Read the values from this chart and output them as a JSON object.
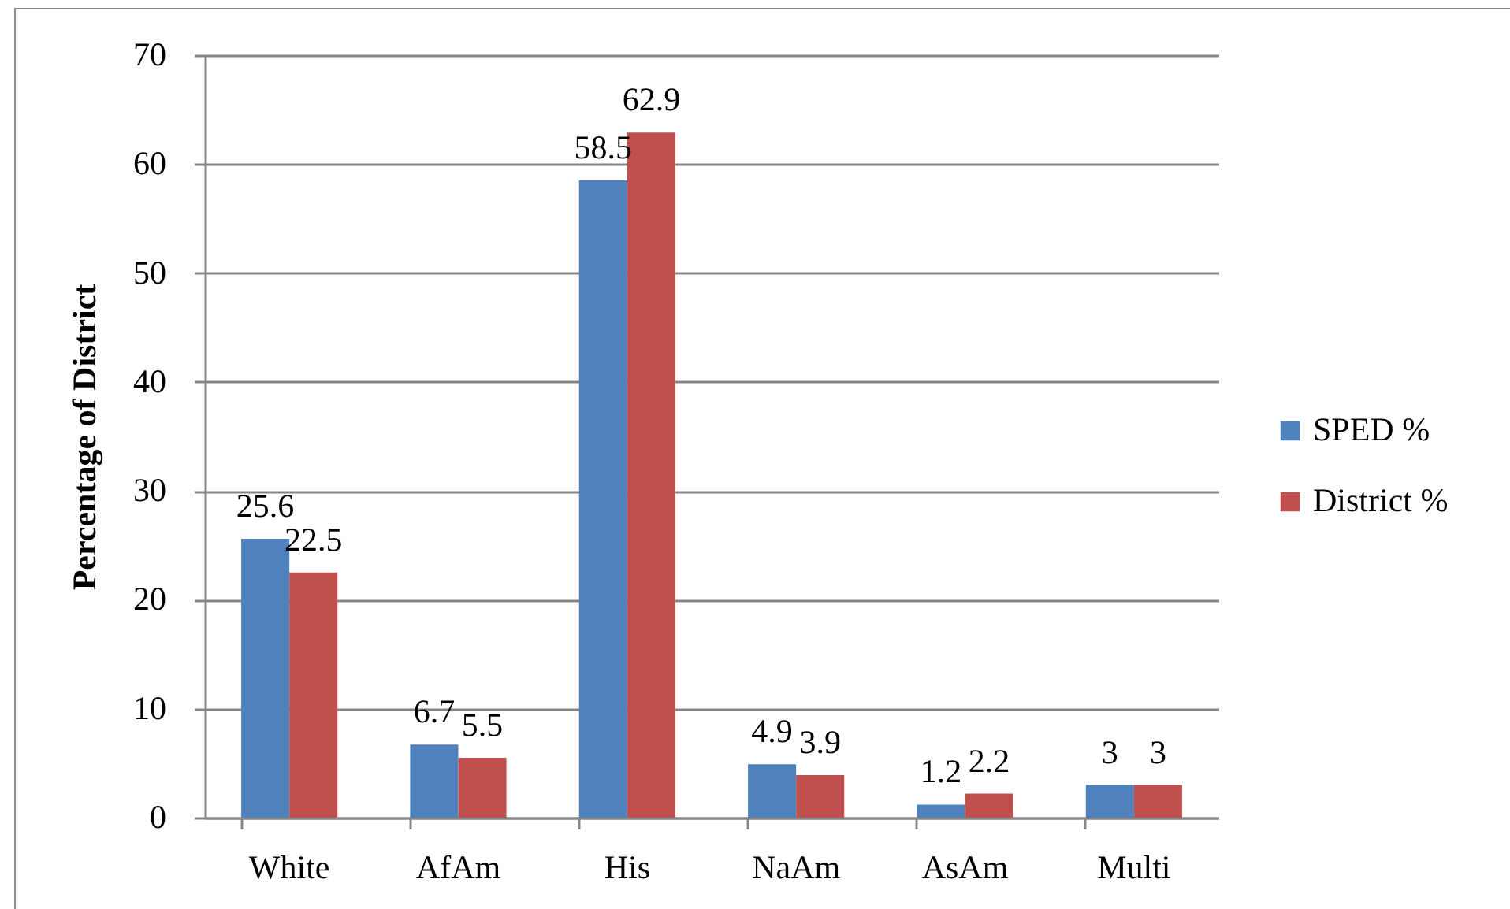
{
  "chart_data": {
    "type": "bar",
    "ylabel": "Percentage of District",
    "categories": [
      "White",
      "AfAm",
      "His",
      "NaAm",
      "AsAm",
      "Multi"
    ],
    "series": [
      {
        "name": "SPED %",
        "color": "#4f81bd",
        "values": [
          25.6,
          6.7,
          58.5,
          4.9,
          1.2,
          3
        ]
      },
      {
        "name": "District %",
        "color": "#c0504d",
        "values": [
          22.5,
          5.5,
          62.9,
          3.9,
          2.2,
          3
        ]
      }
    ],
    "ylim": [
      0,
      70
    ],
    "yticks": [
      0,
      10,
      20,
      30,
      40,
      50,
      60,
      70
    ],
    "grid": "y",
    "legend": "right",
    "data_labels": true
  }
}
